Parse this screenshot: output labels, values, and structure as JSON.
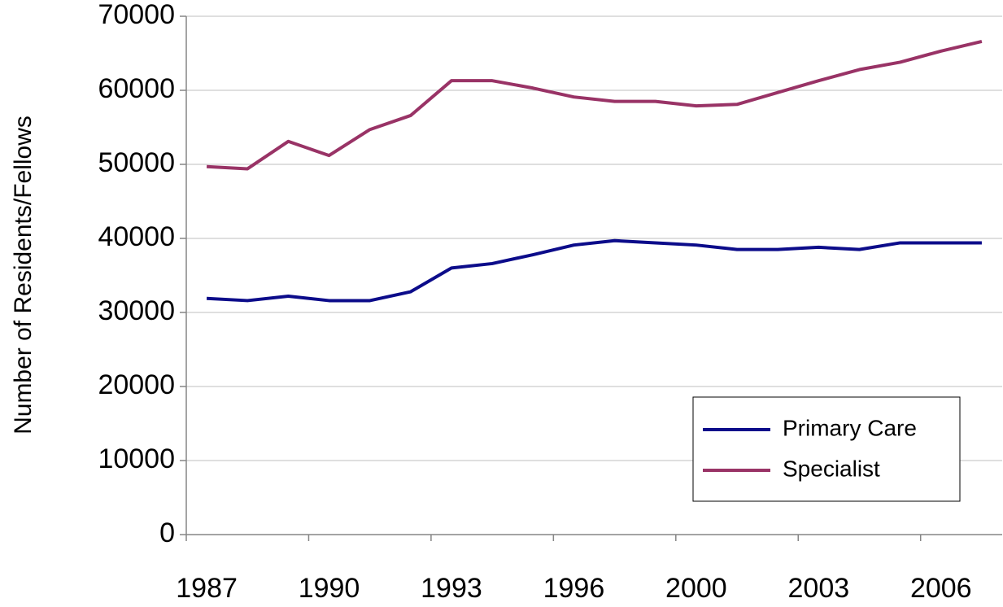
{
  "chart_data": {
    "type": "line",
    "ylabel": "Number of Residents/Fellows",
    "categories": [
      "1987",
      null,
      null,
      "1990",
      null,
      null,
      "1993",
      null,
      null,
      "1996",
      null,
      null,
      "2000",
      null,
      null,
      "2003",
      null,
      null,
      "2006",
      null
    ],
    "series": [
      {
        "name": "Primary Care",
        "color": "#0c0c8a",
        "values": [
          31900,
          31600,
          32200,
          31600,
          31600,
          32800,
          36000,
          36600,
          37800,
          39100,
          39700,
          39400,
          39100,
          38500,
          38500,
          38800,
          38500,
          39400,
          39400,
          39400
        ]
      },
      {
        "name": "Specialist",
        "color": "#993366",
        "values": [
          49700,
          49400,
          53100,
          51200,
          54700,
          56600,
          61300,
          61300,
          60300,
          59100,
          58500,
          58500,
          57900,
          58100,
          59700,
          61300,
          62800,
          63800,
          65300,
          66600
        ]
      }
    ],
    "ylim": [
      0,
      70000
    ],
    "yticks": [
      0,
      10000,
      20000,
      30000,
      40000,
      50000,
      60000,
      70000
    ],
    "grid": true,
    "legend": "lower right"
  }
}
